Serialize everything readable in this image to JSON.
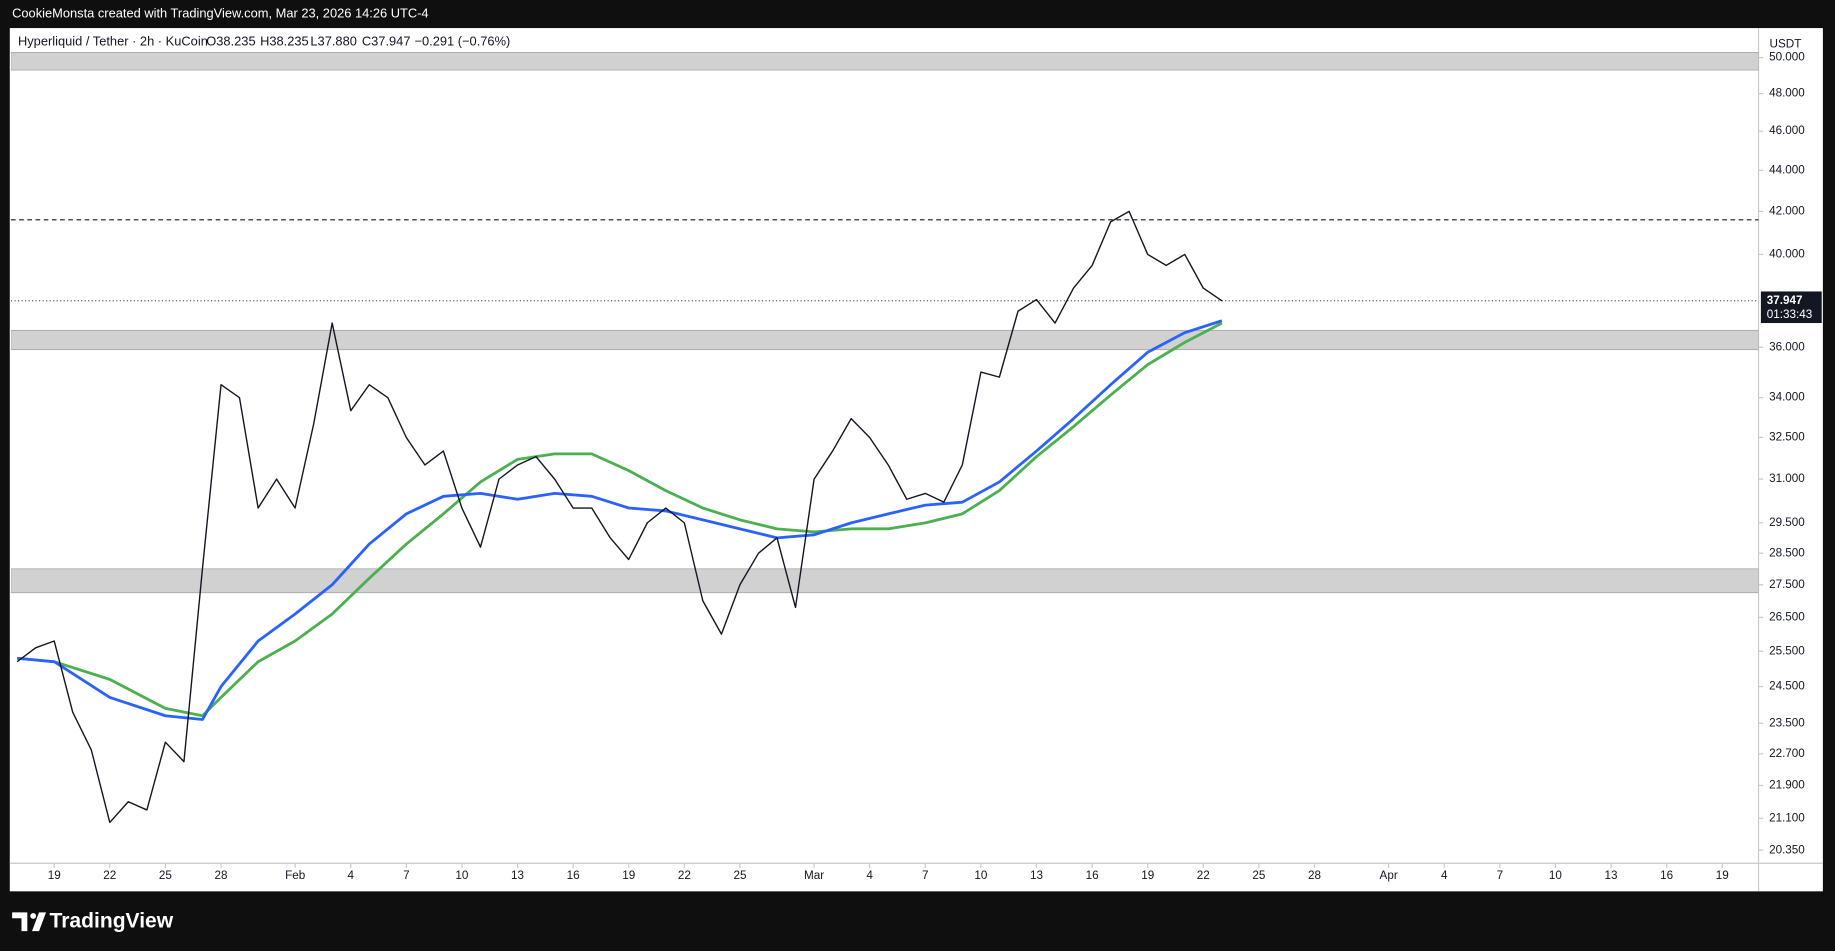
{
  "watermark": "CookieMonsta created with TradingView.com, Mar 23, 2026 14:26 UTC-4",
  "logo": "TradingView",
  "chart_data": {
    "type": "line",
    "title": "Hyperliquid / Tether · 2h · KuCoin",
    "ohlc": [
      "O38.235",
      "H38.235",
      "L37.880",
      "C37.947"
    ],
    "change": "−0.291 (−0.76%)",
    "currency": "USDT",
    "countdown": "01:33:43",
    "log_scale": true,
    "grid": false,
    "ylim": [
      20.05,
      51.5
    ],
    "yticks": [
      {
        "value": 20.35,
        "label": "20.350"
      },
      {
        "value": 21.1,
        "label": "21.100"
      },
      {
        "value": 21.9,
        "label": "21.900"
      },
      {
        "value": 22.7,
        "label": "22.700"
      },
      {
        "value": 23.5,
        "label": "23.500"
      },
      {
        "value": 24.5,
        "label": "24.500"
      },
      {
        "value": 25.5,
        "label": "25.500"
      },
      {
        "value": 26.5,
        "label": "26.500"
      },
      {
        "value": 27.5,
        "label": "27.500"
      },
      {
        "value": 28.5,
        "label": "28.500"
      },
      {
        "value": 29.5,
        "label": "29.500"
      },
      {
        "value": 31,
        "label": "31.000"
      },
      {
        "value": 32.5,
        "label": "32.500"
      },
      {
        "value": 34,
        "label": "34.000"
      },
      {
        "value": 36,
        "label": "36.000"
      },
      {
        "value": 40,
        "label": "40.000"
      },
      {
        "value": 42,
        "label": "42.000"
      },
      {
        "value": 44,
        "label": "44.000"
      },
      {
        "value": 46,
        "label": "46.000"
      },
      {
        "value": 48,
        "label": "48.000"
      },
      {
        "value": 50,
        "label": "50.000"
      }
    ],
    "xlim": [
      "2026-01-16T16:00Z",
      "2026-04-20T23:00Z"
    ],
    "xticks": [
      {
        "value": "2026-01-19",
        "label": "19"
      },
      {
        "value": "2026-01-22",
        "label": "22"
      },
      {
        "value": "2026-01-25",
        "label": "25"
      },
      {
        "value": "2026-01-28",
        "label": "28"
      },
      {
        "value": "2026-02-01",
        "label": "Feb"
      },
      {
        "value": "2026-02-04",
        "label": "4"
      },
      {
        "value": "2026-02-07",
        "label": "7"
      },
      {
        "value": "2026-02-10",
        "label": "10"
      },
      {
        "value": "2026-02-13",
        "label": "13"
      },
      {
        "value": "2026-02-16",
        "label": "16"
      },
      {
        "value": "2026-02-19",
        "label": "19"
      },
      {
        "value": "2026-02-22",
        "label": "22"
      },
      {
        "value": "2026-02-25",
        "label": "25"
      },
      {
        "value": "2026-03-01",
        "label": "Mar"
      },
      {
        "value": "2026-03-04",
        "label": "4"
      },
      {
        "value": "2026-03-07",
        "label": "7"
      },
      {
        "value": "2026-03-10",
        "label": "10"
      },
      {
        "value": "2026-03-13",
        "label": "13"
      },
      {
        "value": "2026-03-16",
        "label": "16"
      },
      {
        "value": "2026-03-19",
        "label": "19"
      },
      {
        "value": "2026-03-22",
        "label": "22"
      },
      {
        "value": "2026-03-25",
        "label": "25"
      },
      {
        "value": "2026-03-28",
        "label": "28"
      },
      {
        "value": "2026-04-01",
        "label": "Apr"
      },
      {
        "value": "2026-04-04",
        "label": "4"
      },
      {
        "value": "2026-04-07",
        "label": "7"
      },
      {
        "value": "2026-04-10",
        "label": "10"
      },
      {
        "value": "2026-04-13",
        "label": "13"
      },
      {
        "value": "2026-04-16",
        "label": "16"
      },
      {
        "value": "2026-04-19",
        "label": "19"
      }
    ],
    "zones": [
      {
        "low": 49.3,
        "high": 50.3,
        "color": "#d1d1d1"
      },
      {
        "low": 35.9,
        "high": 36.7,
        "color": "#d1d1d1"
      },
      {
        "low": 27.25,
        "high": 28.0,
        "color": "#d1d1d1"
      }
    ],
    "levels": [
      {
        "value": 41.6,
        "style": "dashed",
        "color": "#131722"
      }
    ],
    "series": [
      {
        "color": "#131722",
        "x": [
          "2026-01-17",
          "2026-01-18",
          "2026-01-19",
          "2026-01-20",
          "2026-01-21",
          "2026-01-22",
          "2026-01-23",
          "2026-01-24",
          "2026-01-25",
          "2026-01-26",
          "2026-01-27",
          "2026-01-28",
          "2026-01-29",
          "2026-01-30",
          "2026-01-31",
          "2026-02-01",
          "2026-02-02",
          "2026-02-03",
          "2026-02-04",
          "2026-02-05",
          "2026-02-06",
          "2026-02-07",
          "2026-02-08",
          "2026-02-09",
          "2026-02-10",
          "2026-02-11",
          "2026-02-12",
          "2026-02-13",
          "2026-02-14",
          "2026-02-15",
          "2026-02-16",
          "2026-02-17",
          "2026-02-18",
          "2026-02-19",
          "2026-02-20",
          "2026-02-21",
          "2026-02-22",
          "2026-02-23",
          "2026-02-24",
          "2026-02-25",
          "2026-02-26",
          "2026-02-27",
          "2026-02-28",
          "2026-03-01",
          "2026-03-02",
          "2026-03-03",
          "2026-03-04",
          "2026-03-05",
          "2026-03-06",
          "2026-03-07",
          "2026-03-08",
          "2026-03-09",
          "2026-03-10",
          "2026-03-11",
          "2026-03-12",
          "2026-03-13",
          "2026-03-14",
          "2026-03-15",
          "2026-03-16",
          "2026-03-17",
          "2026-03-18",
          "2026-03-19",
          "2026-03-20",
          "2026-03-21",
          "2026-03-22",
          "2026-03-23"
        ],
        "values": [
          25.2,
          25.6,
          25.8,
          23.8,
          22.8,
          21.0,
          21.5,
          21.3,
          23.0,
          22.5,
          28,
          34.5,
          34,
          30,
          31,
          30,
          33,
          37,
          33.5,
          34.5,
          34,
          32.5,
          31.5,
          32,
          30,
          28.7,
          31,
          31.5,
          31.8,
          31,
          30,
          30,
          29,
          28.3,
          29.5,
          30,
          29.5,
          27,
          26,
          27.5,
          28.5,
          29,
          26.8,
          31,
          32,
          33.2,
          32.5,
          31.5,
          30.3,
          30.5,
          30.2,
          31.5,
          35,
          34.8,
          37.5,
          38,
          37,
          38.5,
          39.5,
          41.5,
          42,
          40,
          39.5,
          40,
          38.5,
          37.947
        ]
      },
      {
        "color": "#2962ff",
        "x": [
          "2026-01-17",
          "2026-01-19",
          "2026-01-22",
          "2026-01-25",
          "2026-01-27",
          "2026-01-28",
          "2026-01-30",
          "2026-02-01",
          "2026-02-03",
          "2026-02-05",
          "2026-02-07",
          "2026-02-09",
          "2026-02-11",
          "2026-02-13",
          "2026-02-15",
          "2026-02-17",
          "2026-02-19",
          "2026-02-21",
          "2026-02-23",
          "2026-02-25",
          "2026-02-27",
          "2026-03-01",
          "2026-03-03",
          "2026-03-05",
          "2026-03-07",
          "2026-03-09",
          "2026-03-11",
          "2026-03-13",
          "2026-03-15",
          "2026-03-17",
          "2026-03-19",
          "2026-03-21",
          "2026-03-23"
        ],
        "values": [
          25.3,
          25.2,
          24.2,
          23.7,
          23.6,
          24.5,
          25.8,
          26.6,
          27.5,
          28.8,
          29.8,
          30.4,
          30.5,
          30.3,
          30.5,
          30.4,
          30.0,
          29.9,
          29.6,
          29.3,
          29.0,
          29.1,
          29.5,
          29.8,
          30.1,
          30.2,
          30.9,
          32.0,
          33.2,
          34.5,
          35.8,
          36.6,
          37.1
        ]
      },
      {
        "color": "#4caf50",
        "x": [
          "2026-01-17",
          "2026-01-19",
          "2026-01-22",
          "2026-01-25",
          "2026-01-27",
          "2026-01-28",
          "2026-01-30",
          "2026-02-01",
          "2026-02-03",
          "2026-02-05",
          "2026-02-07",
          "2026-02-09",
          "2026-02-11",
          "2026-02-13",
          "2026-02-15",
          "2026-02-17",
          "2026-02-19",
          "2026-02-21",
          "2026-02-23",
          "2026-02-25",
          "2026-02-27",
          "2026-03-01",
          "2026-03-03",
          "2026-03-05",
          "2026-03-07",
          "2026-03-09",
          "2026-03-11",
          "2026-03-13",
          "2026-03-15",
          "2026-03-17",
          "2026-03-19",
          "2026-03-21",
          "2026-03-23"
        ],
        "values": [
          25.3,
          25.2,
          24.7,
          23.9,
          23.7,
          24.2,
          25.2,
          25.8,
          26.6,
          27.7,
          28.8,
          29.8,
          30.9,
          31.7,
          31.9,
          31.9,
          31.3,
          30.6,
          30.0,
          29.6,
          29.3,
          29.2,
          29.3,
          29.3,
          29.5,
          29.8,
          30.6,
          31.8,
          32.9,
          34.1,
          35.3,
          36.2,
          37.0
        ]
      }
    ]
  }
}
